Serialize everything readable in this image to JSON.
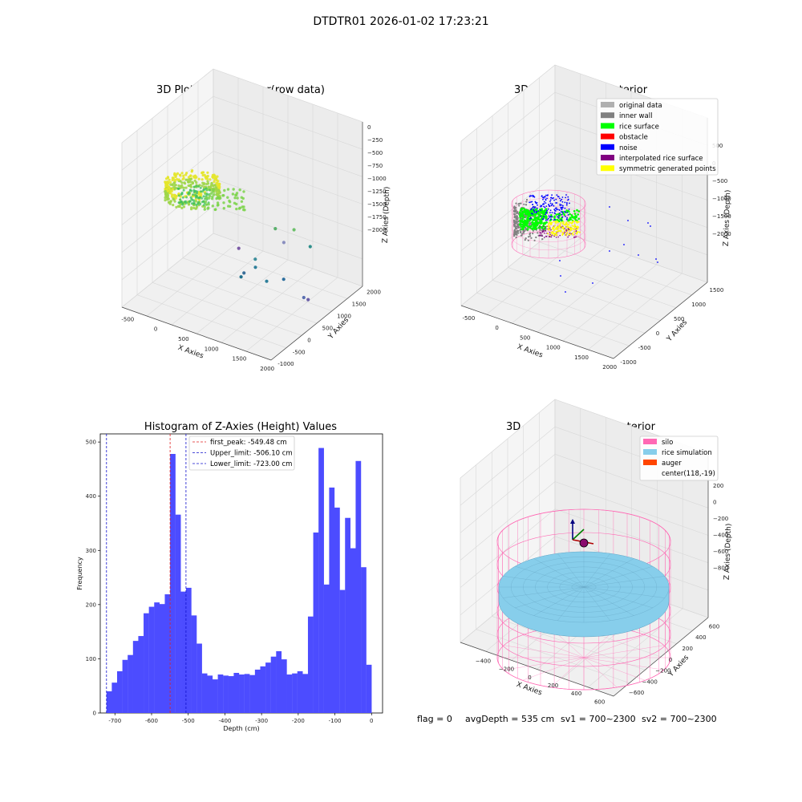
{
  "suptitle": "DTDTR01 2026-01-02 17:23:21",
  "footer": {
    "flag": "flag = 0",
    "avg": "avgDepth = 535 cm",
    "sv1": "sv1 = 700~2300",
    "sv2": "sv2 = 700~2300"
  },
  "colors": {
    "hist_bar": "#4c4cff",
    "peak_line": "#e02020",
    "limit_line": "#1010cc",
    "silo": "#ff69b4",
    "rice": "#87ceeb",
    "auger": "#ff4500",
    "green": "#00ff00",
    "noise": "#0000ff",
    "purple": "#800080",
    "yellow": "#ffff00",
    "gray": "#808080",
    "lightgray": "#b0b0b0",
    "red": "#ff0000"
  },
  "chart_data": [
    {
      "type": "scatter",
      "title": "3D Plot of Silo Interior(row data)",
      "xlabel": "X Axies",
      "ylabel": "Y Axies",
      "zlabel": "Z Axies (Depth)",
      "x_ticks": [
        "-500",
        "0",
        "500",
        "1000",
        "1500",
        "2000"
      ],
      "y_ticks": [
        "-1000",
        "-500",
        "0",
        "500",
        "1000",
        "1500",
        "2000"
      ],
      "z_ticks": [
        "0",
        "−250",
        "−500",
        "−750",
        "−1000",
        "−1250",
        "−1500",
        "−1750",
        "−2000"
      ],
      "xlim": [
        -600,
        2000
      ],
      "ylim": [
        -1100,
        2000
      ],
      "zlim": [
        -2100,
        100
      ],
      "scattered_points": [
        {
          "x": 100,
          "y": 1500,
          "z": -1950,
          "color": "#7b5aa6"
        },
        {
          "x": 500,
          "y": 900,
          "z": -1980,
          "color": "#3b6f9a"
        },
        {
          "x": 500,
          "y": 800,
          "z": -2000,
          "color": "#1f6f8b"
        },
        {
          "x": 700,
          "y": 900,
          "z": -1850,
          "color": "#2e7f9a"
        },
        {
          "x": 800,
          "y": 700,
          "z": -1650,
          "color": "#3c8f9c"
        },
        {
          "x": 1100,
          "y": 500,
          "z": -1800,
          "color": "#2e7f9a"
        },
        {
          "x": 1500,
          "y": 300,
          "z": -1600,
          "color": "#2e6f9e"
        },
        {
          "x": 1850,
          "y": 300,
          "z": -1750,
          "color": "#5a6fb0"
        },
        {
          "x": 1900,
          "y": 350,
          "z": -1780,
          "color": "#6b5fa8"
        },
        {
          "x": 1200,
          "y": 600,
          "z": -1100,
          "color": "#5ab06c"
        },
        {
          "x": 1500,
          "y": 650,
          "z": -1050,
          "color": "#6cc06a"
        },
        {
          "x": 1400,
          "y": 500,
          "z": -1200,
          "color": "#8a8fbf"
        },
        {
          "x": 1500,
          "y": 1200,
          "z": -1450,
          "color": "#2e8f8b"
        }
      ]
    },
    {
      "type": "scatter",
      "title": "3D classify of Silo Interior",
      "xlabel": "X Axies",
      "ylabel": "Y Axies",
      "zlabel": "Z Axies (Depth)",
      "x_ticks": [
        "-500",
        "0",
        "500",
        "1000",
        "1500",
        "2000"
      ],
      "y_ticks": [
        "-1000",
        "-500",
        "0",
        "500",
        "1000",
        "1500"
      ],
      "z_ticks": [
        "500",
        "0",
        "−500",
        "−1000",
        "−1500",
        "−2000"
      ],
      "xlim": [
        -600,
        2100
      ],
      "ylim": [
        -1100,
        1700
      ],
      "zlim": [
        -2100,
        600
      ],
      "legend": {
        "position": "upper right",
        "entries": [
          {
            "label": "original data",
            "color": "#b0b0b0"
          },
          {
            "label": "inner wall",
            "color": "#808080"
          },
          {
            "label": "rice surface",
            "color": "#00ff00"
          },
          {
            "label": "obstacle",
            "color": "#ff0000"
          },
          {
            "label": "noise",
            "color": "#0000ff"
          },
          {
            "label": "interpolated rice surface",
            "color": "#800080"
          },
          {
            "label": "symmetric generated points",
            "color": "#ffff00"
          }
        ]
      }
    },
    {
      "type": "bar",
      "title": "Histogram of Z-Axies (Height) Values",
      "xlabel": "Depth (cm)",
      "ylabel": "Frequency",
      "xlim": [
        -740,
        30
      ],
      "ylim": [
        0,
        515
      ],
      "x_ticks": [
        -700,
        -600,
        -500,
        -400,
        -300,
        -200,
        -100,
        0
      ],
      "y_ticks": [
        0,
        100,
        200,
        300,
        400,
        500
      ],
      "bin_start": -723,
      "bin_width": 14.46,
      "values": [
        40,
        56,
        77,
        98,
        107,
        133,
        142,
        184,
        196,
        204,
        201,
        219,
        478,
        366,
        224,
        231,
        180,
        128,
        73,
        69,
        62,
        71,
        69,
        68,
        74,
        71,
        72,
        70,
        80,
        86,
        93,
        104,
        114,
        99,
        71,
        73,
        77,
        72,
        178,
        333,
        489,
        237,
        416,
        379,
        227,
        360,
        304,
        465,
        269,
        89
      ],
      "lines": [
        {
          "label": "first_peak: -549.48 cm",
          "x": -549.48,
          "color": "#e02020"
        },
        {
          "label": "Upper_limit: -506.10 cm",
          "x": -506.1,
          "color": "#1010cc"
        },
        {
          "label": "Lower_limit: -723.00 cm",
          "x": -723.0,
          "color": "#1010cc"
        }
      ],
      "legend": {
        "position": "upper center"
      }
    },
    {
      "type": "scatter",
      "title": "3D simulation of Silo Interior",
      "xlabel": "X Axies",
      "ylabel": "Y Axies",
      "zlabel": "Z Axies (Depth)",
      "x_ticks": [
        "−400",
        "−200",
        "0",
        "200",
        "400",
        "600"
      ],
      "y_ticks": [
        "−600",
        "−400",
        "−200",
        "0",
        "200",
        "400",
        "600"
      ],
      "z_ticks": [
        "200",
        "0",
        "−200",
        "−400",
        "−600",
        "−800"
      ],
      "xlim": [
        -500,
        700
      ],
      "ylim": [
        -700,
        700
      ],
      "zlim": [
        -1000,
        350
      ],
      "legend": {
        "position": "upper right",
        "entries": [
          {
            "label": "silo",
            "color": "#ff69b4"
          },
          {
            "label": "rice simulation",
            "color": "#87ceeb"
          },
          {
            "label": "auger",
            "color": "#ff4500"
          },
          {
            "label": "center(118,-19)",
            "color": ""
          }
        ]
      }
    }
  ]
}
